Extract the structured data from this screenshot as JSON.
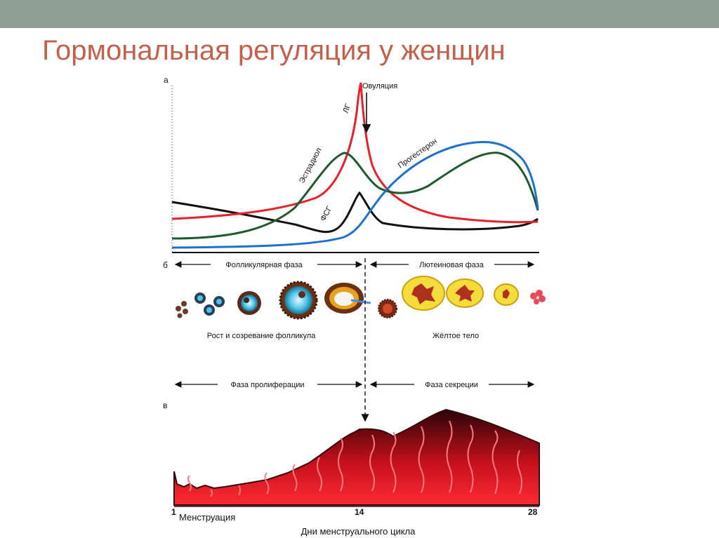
{
  "slide": {
    "title": "Гормональная регуляция у женщин",
    "accent_title": "#c4604a",
    "top_bar": "#8f9e97"
  },
  "panels": {
    "a": "а",
    "b": "б",
    "v": "в"
  },
  "hormones": {
    "lh": {
      "label": "ЛГ",
      "color": "#e8202a"
    },
    "estradiol": {
      "label": "Эстрадиол",
      "color": "#1f5a2e"
    },
    "progesterone": {
      "label": "Прогестерон",
      "color": "#1d6fd0"
    },
    "fsh": {
      "label": "ФСГ",
      "color": "#111111"
    }
  },
  "ovulation_label": "Овуляция",
  "ovary": {
    "phase_left": "Фолликулярная фаза",
    "phase_right": "Лютеиновая фаза",
    "caption_left": "Рост и созревание фолликула",
    "caption_right": "Жёлтое тело"
  },
  "endometrium": {
    "phase_left": "Фаза пролиферации",
    "phase_right": "Фаза секреции",
    "day_start": "1",
    "day_mid": "14",
    "day_end": "28",
    "menstruation": "Менструация",
    "axis_caption": "Дни менструального цикла"
  }
}
